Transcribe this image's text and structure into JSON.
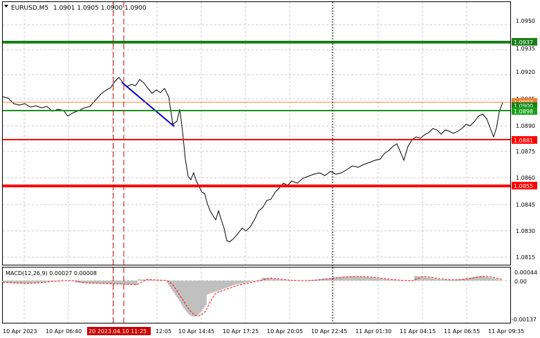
{
  "symbol": {
    "label": "EURUSD,M5",
    "ohlc": "1.0901 1.0905 1.0900 1.0900",
    "dropdown_icon": "triangle-down-icon"
  },
  "indicator": {
    "label": "MACD(12,26,9) 0.00027 0.00008",
    "scale_labels": [
      "0.00044",
      "0.00",
      "-0.00137"
    ]
  },
  "price_scale": {
    "ticks": [
      "1.0950",
      "1.0935",
      "1.0920",
      "1.0905",
      "1.0890",
      "1.0875",
      "1.0860",
      "1.0845",
      "1.0830",
      "1.0815"
    ]
  },
  "time_axis": {
    "labels": [
      "10 Apr 2023",
      "10 Apr 06:40",
      "20 2023.04.10 11:25",
      "12:05",
      "10 Apr 14:45",
      "10 Apr 17:25",
      "10 Apr 20:05",
      "10 Apr 22:45",
      "11 Apr 01:30",
      "11 Apr 04:15",
      "11 Apr 06:55",
      "11 Apr 09:35"
    ]
  },
  "levels": [
    {
      "price": "1.0937",
      "color": "#1a7f1a"
    },
    {
      "price": "1.0903",
      "color": "#f08030"
    },
    {
      "price": "1.0900",
      "color": "#1a7f1a"
    },
    {
      "price": "1.0898",
      "color": "#1a9f1a"
    },
    {
      "price": "1.0881",
      "color": "#ff0000"
    },
    {
      "price": "1.0855",
      "color": "#ff0000"
    }
  ],
  "colors": {
    "price_line": "#000000",
    "trend_line": "#0000cc",
    "macd_histogram": "#c0c0c0",
    "macd_signal": "#ff0000",
    "grid": "#c8c8c8"
  }
}
